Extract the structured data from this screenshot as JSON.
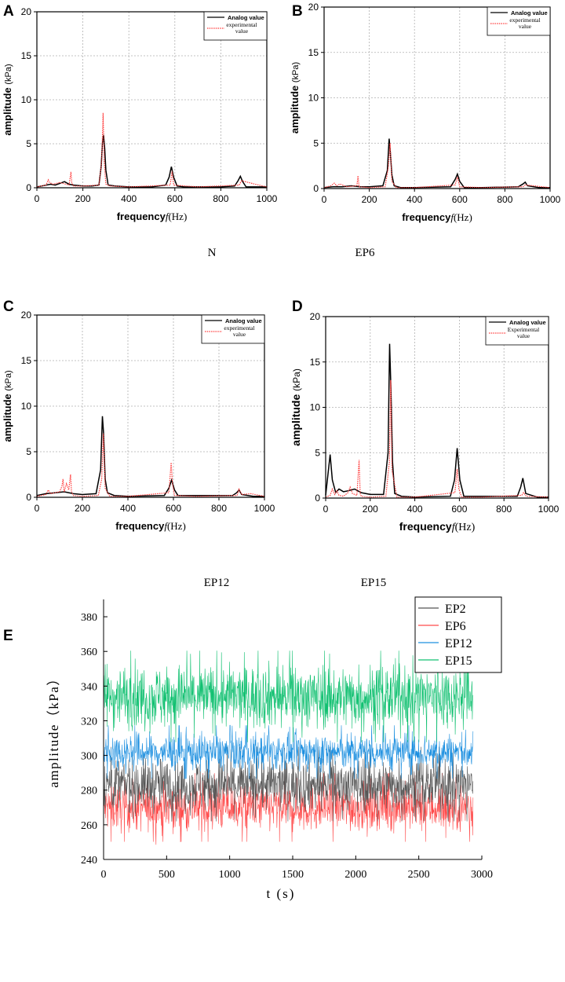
{
  "figure": {
    "captions": {
      "A": "N",
      "B": "EP6",
      "C": "EP12",
      "D": "EP15"
    }
  },
  "chart_data": [
    {
      "id": "A",
      "type": "line",
      "panel_label": "A",
      "xlabel": "frequency",
      "xvar": "f",
      "xunit": "(Hz)",
      "ylabel": "amplitude",
      "yunit": "(kPa)",
      "xlim": [
        0,
        1000
      ],
      "ylim": [
        0,
        20
      ],
      "xticks": [
        0,
        200,
        400,
        600,
        800,
        1000
      ],
      "yticks": [
        0,
        5,
        10,
        15,
        20
      ],
      "legend": [
        "Analog value",
        "experimental\nvalue"
      ],
      "legend_position": "top-right",
      "series": [
        {
          "name": "Analog value",
          "color": "#000000",
          "style": "solid",
          "x": [
            0,
            20,
            40,
            60,
            80,
            100,
            120,
            140,
            160,
            200,
            240,
            270,
            280,
            285,
            290,
            295,
            300,
            310,
            340,
            400,
            500,
            560,
            575,
            585,
            595,
            610,
            640,
            700,
            800,
            860,
            875,
            885,
            895,
            910,
            950,
            1000
          ],
          "y": [
            0.1,
            0.2,
            0.3,
            0.4,
            0.3,
            0.5,
            0.7,
            0.4,
            0.3,
            0.2,
            0.2,
            0.3,
            2.5,
            5.0,
            6.0,
            4.5,
            2.0,
            0.3,
            0.2,
            0.1,
            0.1,
            0.3,
            1.2,
            2.4,
            1.2,
            0.2,
            0.1,
            0.1,
            0.1,
            0.2,
            0.8,
            1.3,
            0.7,
            0.1,
            0.1,
            0.1
          ]
        },
        {
          "name": "experimental value",
          "color": "#ff3b3b",
          "style": "dotted",
          "x": [
            0,
            40,
            50,
            55,
            70,
            100,
            140,
            148,
            152,
            160,
            200,
            270,
            282,
            288,
            293,
            300,
            320,
            400,
            580,
            588,
            595,
            700,
            880,
            890,
            950,
            1000
          ],
          "y": [
            0.1,
            0.3,
            0.9,
            0.6,
            0.4,
            0.6,
            0.3,
            1.8,
            0.5,
            0.2,
            0.2,
            0.3,
            3.0,
            8.5,
            3.0,
            0.4,
            0.2,
            0.1,
            0.3,
            1.9,
            0.3,
            0.1,
            0.3,
            0.8,
            0.4,
            0.1
          ]
        }
      ]
    },
    {
      "id": "B",
      "type": "line",
      "panel_label": "B",
      "xlabel": "frequency",
      "xvar": "f",
      "xunit": "(Hz)",
      "ylabel": "amplitude",
      "yunit": "(kPa)",
      "xlim": [
        0,
        1000
      ],
      "ylim": [
        0,
        20
      ],
      "xticks": [
        0,
        200,
        400,
        600,
        800,
        1000
      ],
      "yticks": [
        0,
        5,
        10,
        15,
        20
      ],
      "legend": [
        "Analog value",
        "experimental\nvalue"
      ],
      "legend_position": "top-right",
      "series": [
        {
          "name": "Analog value",
          "color": "#000000",
          "style": "solid",
          "x": [
            0,
            40,
            80,
            120,
            160,
            200,
            260,
            280,
            288,
            293,
            300,
            310,
            340,
            400,
            560,
            580,
            590,
            600,
            620,
            700,
            860,
            880,
            890,
            900,
            950,
            1000
          ],
          "y": [
            0.1,
            0.2,
            0.2,
            0.3,
            0.2,
            0.2,
            0.3,
            2.0,
            5.5,
            4.0,
            1.5,
            0.3,
            0.1,
            0.1,
            0.2,
            1.0,
            1.6,
            0.8,
            0.1,
            0.1,
            0.2,
            0.5,
            0.7,
            0.3,
            0.1,
            0.1
          ]
        },
        {
          "name": "experimental value",
          "color": "#ff3b3b",
          "style": "dotted",
          "x": [
            0,
            30,
            45,
            55,
            70,
            100,
            145,
            150,
            155,
            200,
            270,
            285,
            292,
            300,
            320,
            400,
            580,
            590,
            600,
            700,
            880,
            890,
            1000
          ],
          "y": [
            0.1,
            0.3,
            0.6,
            0.3,
            0.5,
            0.2,
            0.3,
            1.4,
            0.2,
            0.1,
            0.2,
            2.5,
            5.0,
            0.8,
            0.1,
            0.1,
            0.4,
            1.3,
            0.2,
            0.1,
            0.2,
            0.4,
            0.1
          ]
        }
      ]
    },
    {
      "id": "C",
      "type": "line",
      "panel_label": "C",
      "xlabel": "frequency",
      "xvar": "f",
      "xunit": "(Hz)",
      "ylabel": "amplitude",
      "yunit": "(kPa)",
      "xlim": [
        0,
        1000
      ],
      "ylim": [
        0,
        20
      ],
      "xticks": [
        0,
        200,
        400,
        600,
        800,
        1000
      ],
      "yticks": [
        0,
        5,
        10,
        15,
        20
      ],
      "legend": [
        "Analog value",
        "experimental\nvalue"
      ],
      "legend_position": "top-right",
      "series": [
        {
          "name": "Analog value",
          "color": "#000000",
          "style": "solid",
          "x": [
            0,
            40,
            80,
            120,
            160,
            200,
            260,
            280,
            288,
            293,
            300,
            310,
            340,
            400,
            560,
            580,
            592,
            605,
            620,
            700,
            860,
            878,
            888,
            900,
            950,
            1000
          ],
          "y": [
            0.2,
            0.4,
            0.5,
            0.6,
            0.4,
            0.3,
            0.4,
            3.0,
            8.9,
            7.0,
            2.0,
            0.5,
            0.2,
            0.1,
            0.2,
            1.0,
            1.9,
            0.8,
            0.2,
            0.2,
            0.2,
            0.5,
            0.8,
            0.3,
            0.1,
            0.1
          ]
        },
        {
          "name": "experimental value",
          "color": "#ff3b3b",
          "style": "dotted",
          "x": [
            0,
            40,
            50,
            60,
            80,
            100,
            110,
            115,
            120,
            130,
            140,
            148,
            152,
            160,
            200,
            270,
            285,
            292,
            300,
            320,
            400,
            580,
            590,
            596,
            605,
            700,
            880,
            888,
            900,
            940,
            1000
          ],
          "y": [
            0.1,
            0.3,
            0.8,
            0.4,
            0.5,
            0.6,
            1.2,
            2.0,
            0.6,
            1.5,
            0.8,
            2.5,
            0.6,
            0.2,
            0.1,
            0.2,
            2.0,
            7.0,
            1.0,
            0.1,
            0.1,
            0.5,
            3.8,
            1.5,
            0.2,
            0.1,
            0.2,
            0.9,
            0.3,
            0.4,
            0.1
          ]
        }
      ]
    },
    {
      "id": "D",
      "type": "line",
      "panel_label": "D",
      "xlabel": "frequency",
      "xvar": "f",
      "xunit": "(Hz)",
      "ylabel": "amplitude",
      "yunit": "(kPa)",
      "xlim": [
        0,
        1000
      ],
      "ylim": [
        0,
        20
      ],
      "xticks": [
        0,
        200,
        400,
        600,
        800,
        1000
      ],
      "yticks": [
        0,
        5,
        10,
        15,
        20
      ],
      "legend": [
        "Analog value",
        "Experimental\nvalue"
      ],
      "legend_position": "top-right",
      "series": [
        {
          "name": "Analog value",
          "color": "#000000",
          "style": "solid",
          "x": [
            0,
            10,
            20,
            30,
            45,
            60,
            80,
            100,
            130,
            160,
            200,
            260,
            280,
            287,
            293,
            300,
            310,
            340,
            400,
            560,
            578,
            590,
            602,
            620,
            700,
            860,
            875,
            885,
            898,
            950,
            1000
          ],
          "y": [
            0.3,
            2.5,
            4.8,
            2.0,
            0.6,
            1.0,
            0.7,
            0.8,
            1.0,
            0.6,
            0.4,
            0.4,
            5.0,
            17.0,
            12.0,
            4.0,
            0.5,
            0.2,
            0.1,
            0.2,
            2.0,
            5.5,
            2.0,
            0.2,
            0.2,
            0.2,
            1.2,
            2.2,
            0.5,
            0.1,
            0.1
          ]
        },
        {
          "name": "Experimental value",
          "color": "#ff3b3b",
          "style": "dotted",
          "x": [
            0,
            20,
            30,
            40,
            50,
            60,
            80,
            100,
            110,
            120,
            140,
            150,
            155,
            160,
            200,
            270,
            286,
            292,
            298,
            320,
            400,
            580,
            590,
            598,
            610,
            700,
            880,
            888,
            900,
            1000
          ],
          "y": [
            0.1,
            0.3,
            1.0,
            0.4,
            0.8,
            0.3,
            0.2,
            0.6,
            1.2,
            0.5,
            0.3,
            4.2,
            0.5,
            0.2,
            0.1,
            0.2,
            4.0,
            13.0,
            3.0,
            0.1,
            0.1,
            0.6,
            3.2,
            1.0,
            0.1,
            0.1,
            0.3,
            0.6,
            0.2,
            0.1
          ]
        }
      ]
    },
    {
      "id": "E",
      "type": "line",
      "panel_label": "E",
      "xlabel": "t (s)",
      "ylabel": "amplitude（kPa）",
      "xlim": [
        0,
        3000
      ],
      "ylim": [
        240,
        390
      ],
      "xticks": [
        0,
        500,
        1000,
        1500,
        2000,
        2500,
        3000
      ],
      "yticks": [
        240,
        260,
        280,
        300,
        320,
        340,
        360,
        380
      ],
      "data_xrange": [
        0,
        2930
      ],
      "legend": [
        "EP2",
        "EP6",
        "EP12",
        "EP15"
      ],
      "legend_position": "top-right",
      "series": [
        {
          "name": "EP2",
          "color": "#555555",
          "mean": 283,
          "spread": 10,
          "max": 305,
          "min": 262
        },
        {
          "name": "EP6",
          "color": "#ff4c4c",
          "mean": 270,
          "spread": 9,
          "max": 293,
          "min": 245
        },
        {
          "name": "EP12",
          "color": "#1e90e0",
          "mean": 302,
          "spread": 7,
          "max": 325,
          "min": 285
        },
        {
          "name": "EP15",
          "color": "#10c070",
          "mean": 334,
          "spread": 12,
          "max": 376,
          "min": 305
        }
      ]
    }
  ]
}
